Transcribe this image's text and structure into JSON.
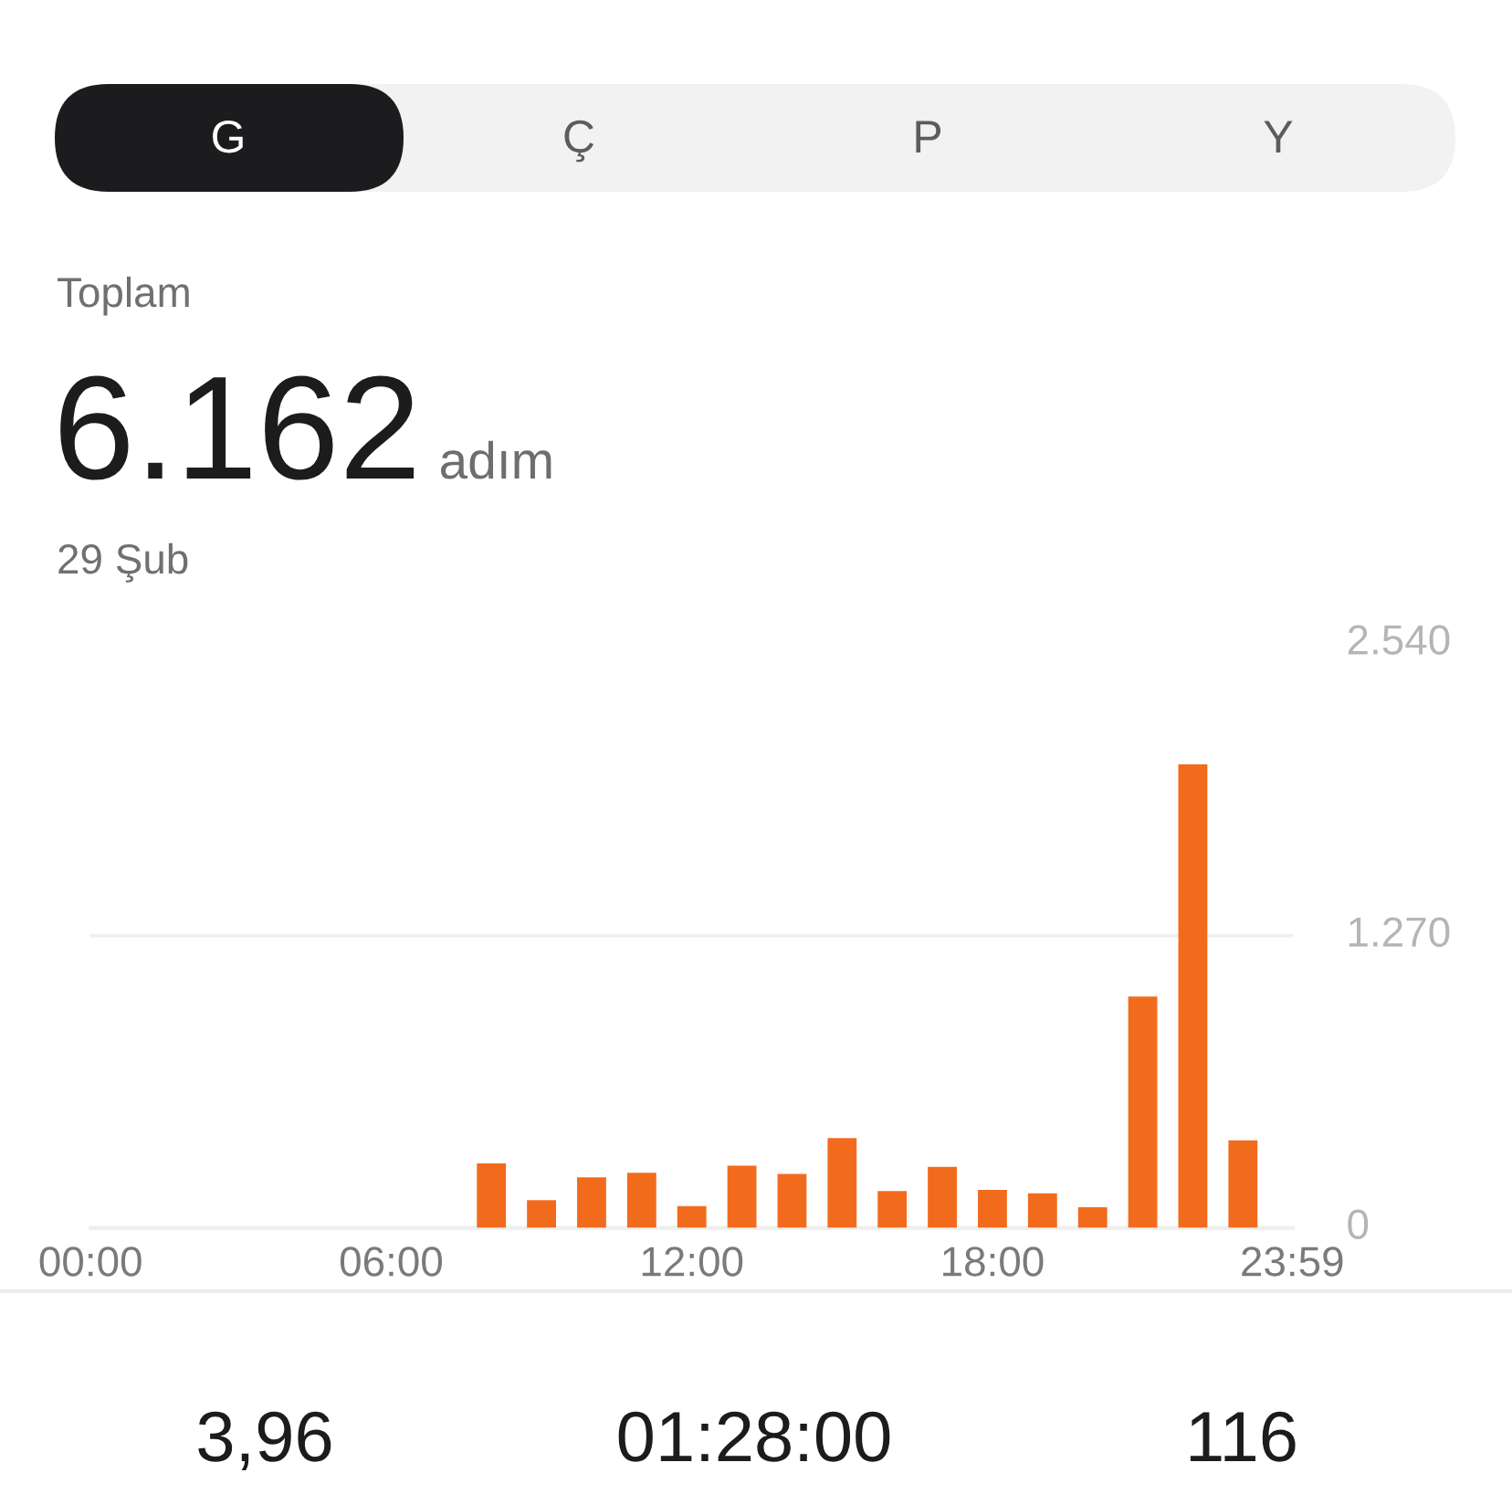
{
  "chart_data": {
    "type": "bar",
    "title": "6.162",
    "subtitle": "29 Şub",
    "annotations": [
      "G",
      "Ç",
      "P",
      "Y",
      "Toplam",
      "adım",
      "3,96",
      "01:28:00",
      "116"
    ],
    "x": [
      8,
      9,
      10,
      11,
      12,
      13,
      14,
      15,
      16,
      17,
      18,
      19,
      20,
      21,
      22,
      23
    ],
    "values": [
      280,
      120,
      220,
      240,
      95,
      270,
      235,
      390,
      160,
      265,
      165,
      150,
      90,
      1005,
      2015,
      380
    ],
    "color": "#f26b1d",
    "xlim": [
      0,
      24
    ],
    "xticks": [
      {
        "value": 0,
        "label": "00:00"
      },
      {
        "value": 6,
        "label": "06:00"
      },
      {
        "value": 12,
        "label": "12:00"
      },
      {
        "value": 18,
        "label": "18:00"
      },
      {
        "value": 23.983,
        "label": "23:59"
      }
    ],
    "ylim": [
      0,
      2540
    ],
    "yticks": [
      0,
      {
        "value": 1270,
        "label": "1.270"
      },
      {
        "value": 2540,
        "label": "2.540"
      }
    ],
    "grid": "y"
  }
}
